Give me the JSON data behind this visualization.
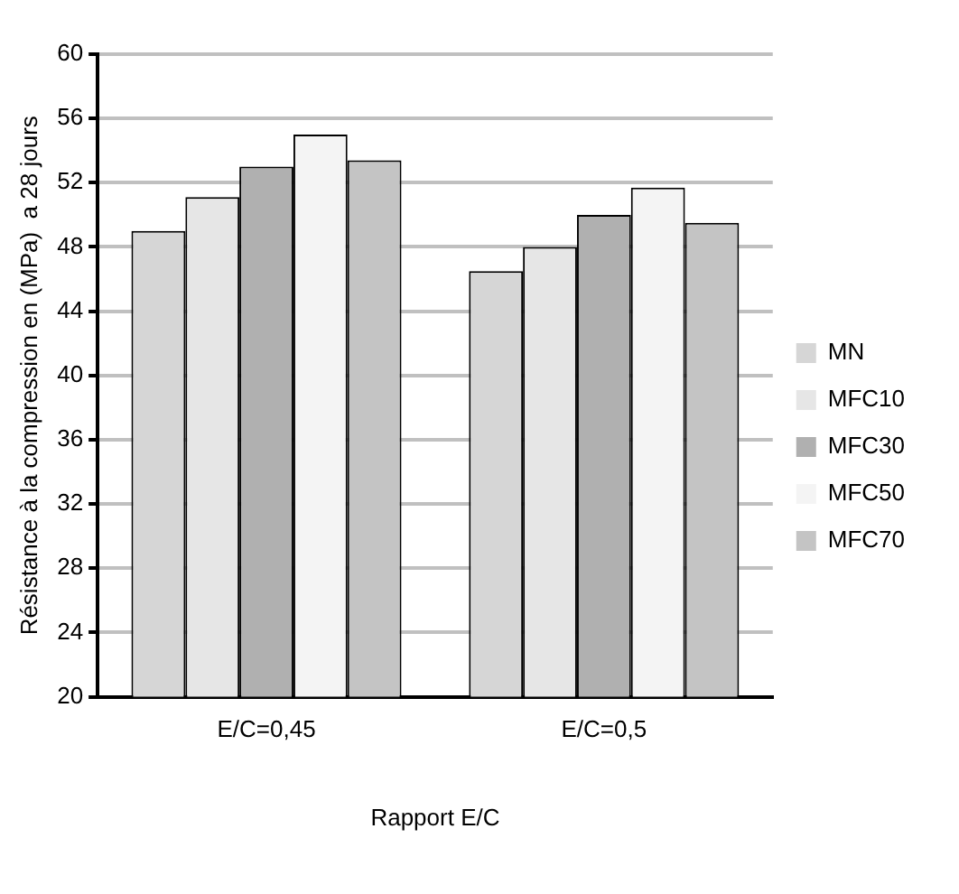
{
  "chart_data": {
    "type": "bar",
    "xlabel": "Rapport E/C",
    "ylabel": "Résistance à la compression en (MPa)  a 28 jours",
    "categories": [
      "E/C=0,45",
      "E/C=0,5"
    ],
    "series": [
      {
        "name": "MN",
        "color": "#d6d6d6",
        "values": [
          49,
          46.5
        ]
      },
      {
        "name": "MFC10",
        "color": "#e6e6e6",
        "values": [
          51.1,
          48
        ]
      },
      {
        "name": "MFC30",
        "color": "#b0b0b0",
        "values": [
          53,
          50
        ]
      },
      {
        "name": "MFC50",
        "color": "#f4f4f4",
        "values": [
          55,
          51.7
        ]
      },
      {
        "name": "MFC70",
        "color": "#c4c4c4",
        "values": [
          53.4,
          49.5
        ]
      }
    ],
    "ylim": [
      20,
      60
    ],
    "yticks": [
      20,
      24,
      28,
      32,
      36,
      40,
      44,
      48,
      52,
      56,
      60
    ],
    "grid": "y",
    "legend": "right"
  }
}
